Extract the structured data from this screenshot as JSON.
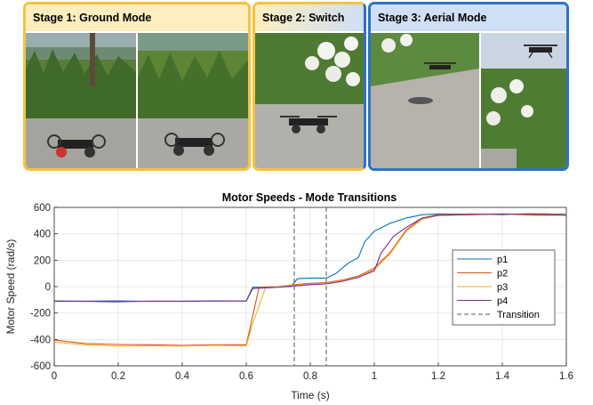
{
  "stages": [
    {
      "label": "Stage 1: Ground Mode",
      "border": "#f5c342",
      "header": "#fdeebf"
    },
    {
      "label": "Stage 2:  Switch",
      "border": "#f5c342",
      "header": "#fdeebf"
    },
    {
      "label": "Stage 3: Aerial Mode",
      "border": "#2f73c2",
      "header": "#cfdff5"
    }
  ],
  "chart_data": {
    "type": "line",
    "title": "Motor Speeds - Mode Transitions",
    "xlabel": "Time (s)",
    "ylabel": "Motor Speed (rad/s)",
    "xlim": [
      0,
      1.6
    ],
    "ylim": [
      -600,
      600
    ],
    "xticks": [
      0,
      0.2,
      0.4,
      0.6,
      0.8,
      1,
      1.2,
      1.4,
      1.6
    ],
    "xtick_labels": [
      "0",
      "0.2",
      "0.4",
      "0.6",
      "0.8",
      "1",
      "1.2",
      "1.4",
      "1.6"
    ],
    "yticks": [
      -600,
      -400,
      -200,
      0,
      200,
      400,
      600
    ],
    "ytick_labels": [
      "-600",
      "-400",
      "-200",
      "0",
      "200",
      "400",
      "600"
    ],
    "grid": true,
    "legend_position": "right",
    "transitions": [
      0.75,
      0.85
    ],
    "transition_label": "Transition",
    "series": [
      {
        "name": "p1",
        "color": "#0072bd",
        "x": [
          0,
          0.1,
          0.2,
          0.3,
          0.4,
          0.5,
          0.6,
          0.62,
          0.7,
          0.74,
          0.76,
          0.8,
          0.85,
          0.88,
          0.9,
          0.92,
          0.95,
          0.97,
          1.0,
          1.05,
          1.1,
          1.15,
          1.2,
          1.3,
          1.4,
          1.5,
          1.6
        ],
        "y": [
          -112,
          -110,
          -108,
          -112,
          -110,
          -110,
          -108,
          -5,
          -2,
          0,
          60,
          65,
          65,
          100,
          140,
          180,
          220,
          340,
          420,
          480,
          520,
          545,
          550,
          550,
          545,
          552,
          548
        ]
      },
      {
        "name": "p2",
        "color": "#d95319",
        "x": [
          0,
          0.1,
          0.2,
          0.3,
          0.4,
          0.5,
          0.58,
          0.6,
          0.64,
          0.7,
          0.75,
          0.8,
          0.85,
          0.9,
          0.95,
          1.0,
          1.05,
          1.1,
          1.15,
          1.2,
          1.3,
          1.4,
          1.5,
          1.6
        ],
        "y": [
          -405,
          -432,
          -438,
          -440,
          -445,
          -440,
          -440,
          -440,
          -5,
          0,
          15,
          25,
          30,
          50,
          80,
          140,
          260,
          430,
          520,
          545,
          550,
          548,
          552,
          545
        ]
      },
      {
        "name": "p3",
        "color": "#edb120",
        "x": [
          0,
          0.1,
          0.2,
          0.3,
          0.4,
          0.5,
          0.6,
          0.62,
          0.66,
          0.7,
          0.75,
          0.8,
          0.85,
          0.9,
          0.95,
          1.0,
          1.05,
          1.1,
          1.15,
          1.2,
          1.3,
          1.4,
          1.5,
          1.6
        ],
        "y": [
          -420,
          -442,
          -450,
          -448,
          -450,
          -445,
          -448,
          -280,
          -10,
          0,
          10,
          20,
          25,
          45,
          70,
          130,
          250,
          420,
          510,
          540,
          545,
          550,
          540,
          542
        ]
      },
      {
        "name": "p4",
        "color": "#7e2f8e",
        "x": [
          0,
          0.1,
          0.2,
          0.3,
          0.4,
          0.5,
          0.6,
          0.62,
          0.7,
          0.75,
          0.8,
          0.85,
          0.9,
          0.95,
          1.0,
          1.02,
          1.06,
          1.1,
          1.15,
          1.2,
          1.3,
          1.4,
          1.5,
          1.6
        ],
        "y": [
          -108,
          -112,
          -115,
          -110,
          -112,
          -108,
          -110,
          -15,
          -5,
          5,
          15,
          20,
          40,
          70,
          120,
          250,
          380,
          450,
          520,
          540,
          545,
          550,
          545,
          540
        ]
      }
    ]
  }
}
